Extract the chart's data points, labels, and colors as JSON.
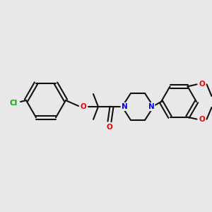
{
  "bg_color": "#e8e8e8",
  "bond_color": "#111111",
  "cl_color": "#00aa00",
  "o_color": "#ee0000",
  "n_color": "#0000dd",
  "lw": 1.5,
  "fs": 7.5,
  "figsize": [
    3.0,
    3.0
  ],
  "dpi": 100,
  "xlim": [
    0,
    300
  ],
  "ylim": [
    0,
    300
  ]
}
